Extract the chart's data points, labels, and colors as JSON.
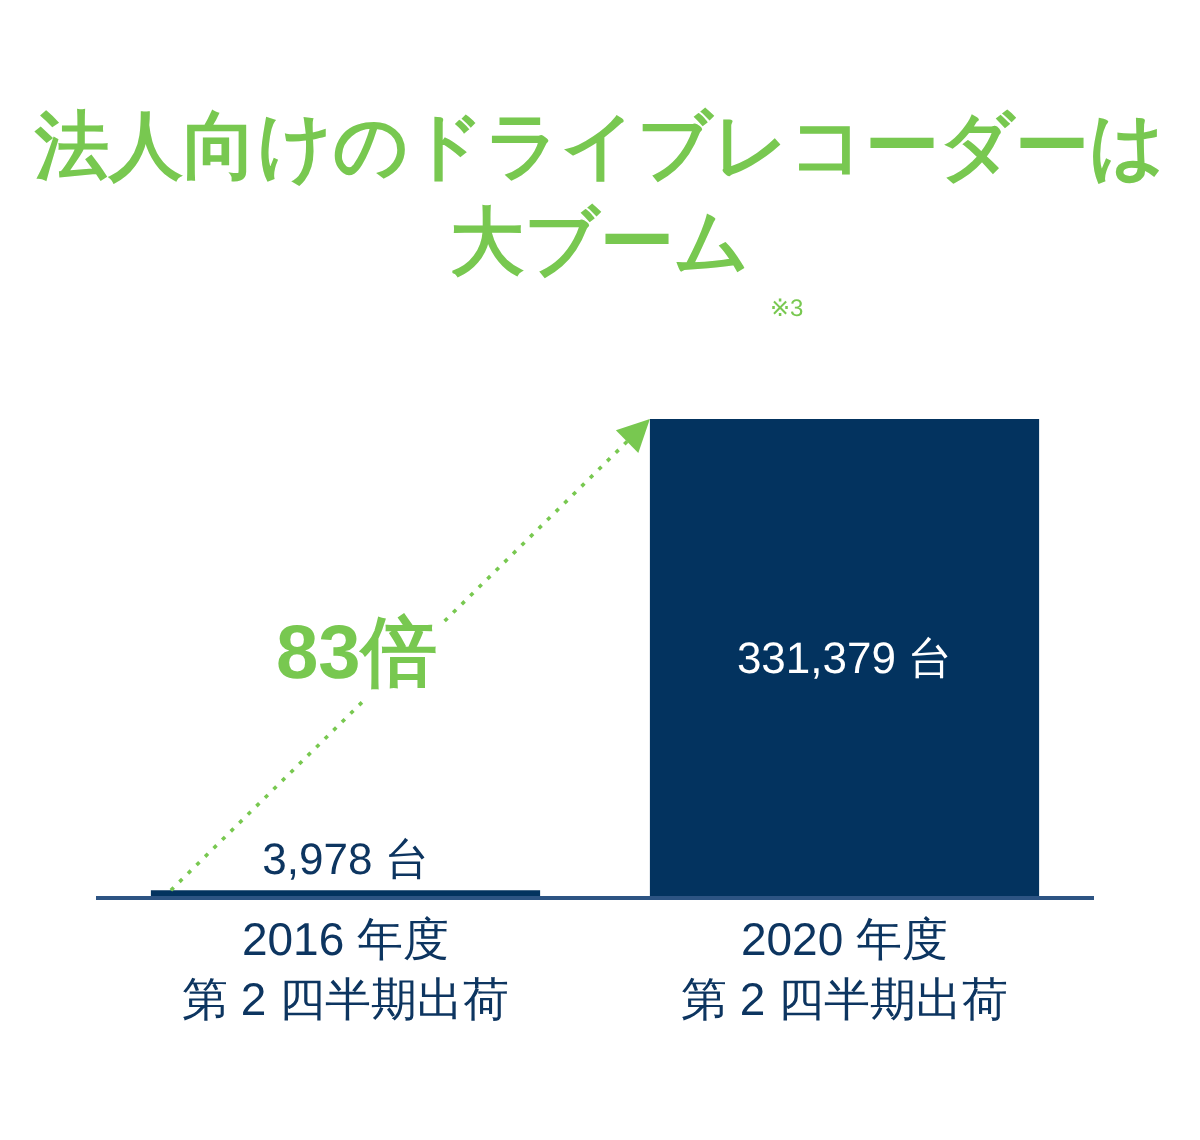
{
  "chart_data": {
    "type": "bar",
    "title": "法人向けのドライブレコーダーは大ブーム",
    "annotations": [
      "※3",
      "83倍"
    ],
    "categories": [
      "2016 年度第 2 四半期出荷",
      "2020 年度第 2 四半期出荷"
    ],
    "values": [
      3978,
      331379
    ],
    "value_labels": [
      "3,978 台",
      "331,379 台"
    ],
    "color": "#03335f",
    "tick_labels": "x",
    "grid": false
  }
}
